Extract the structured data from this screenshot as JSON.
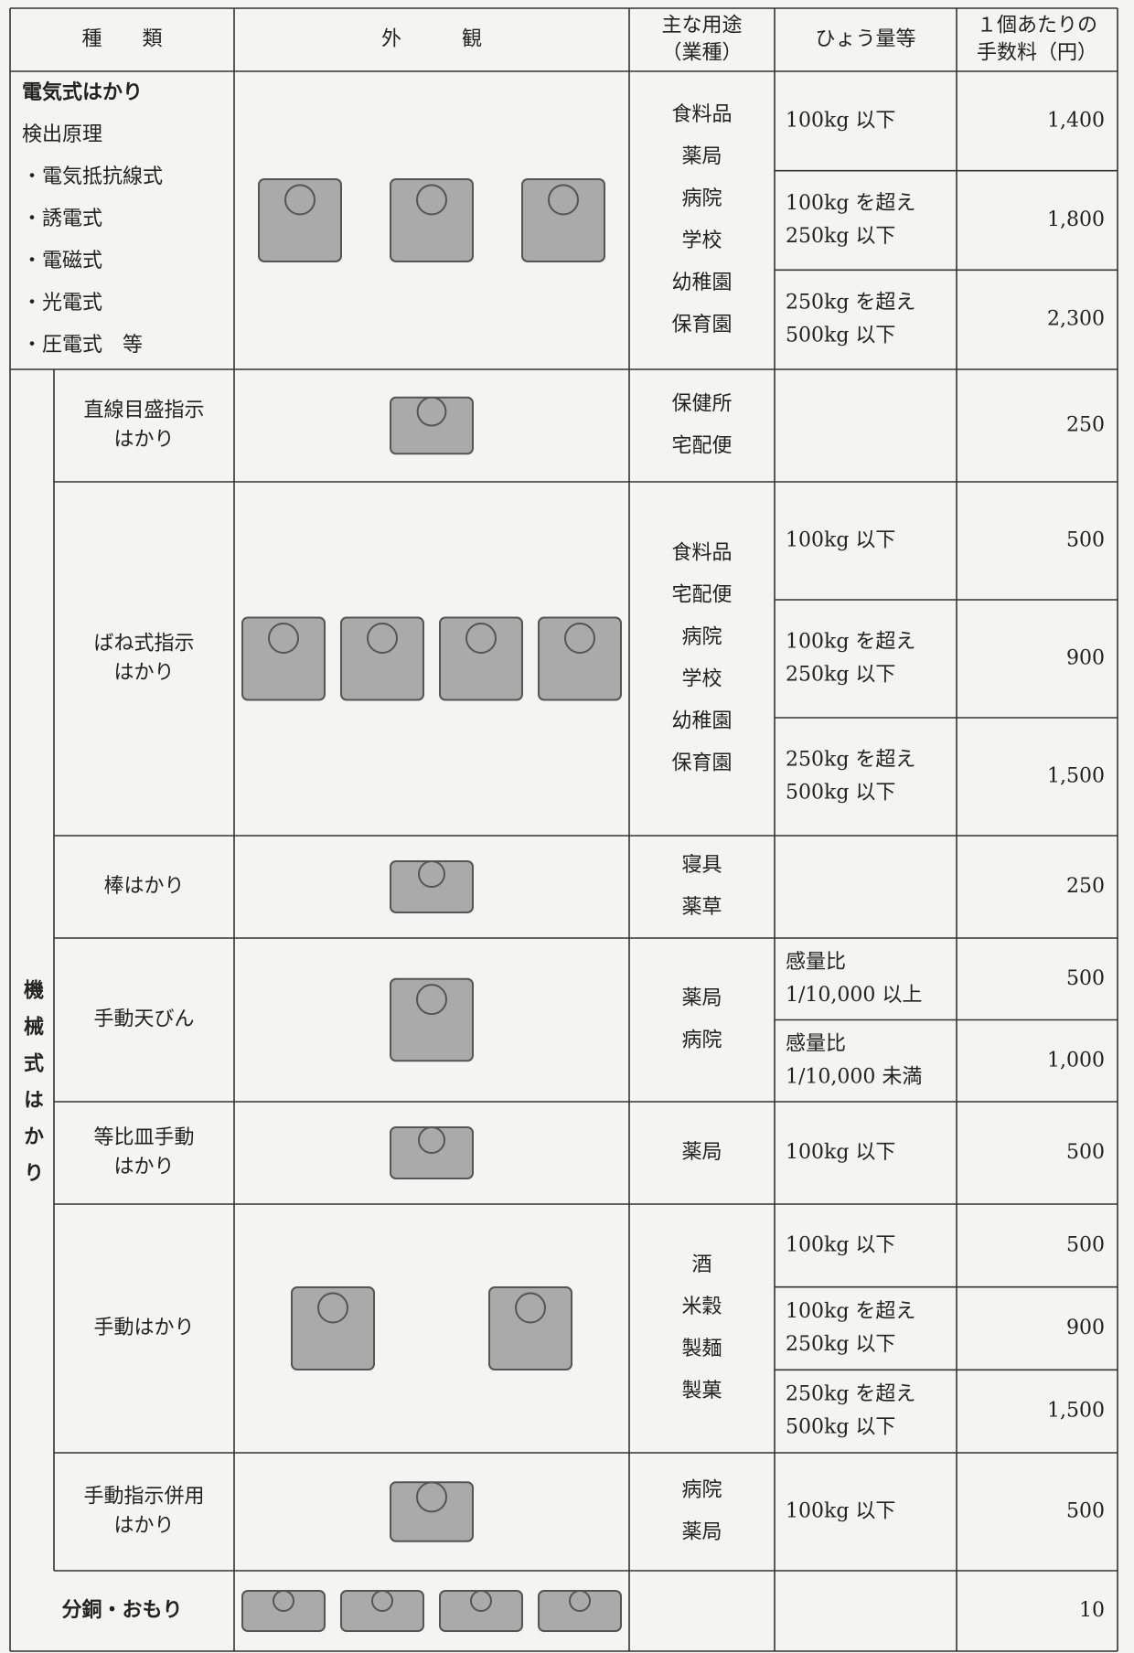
{
  "table": {
    "header": [
      [
        "種　　類"
      ],
      [
        "外　　　観"
      ],
      [
        "主な用途",
        "（業種）"
      ],
      [
        "ひょう量等"
      ],
      [
        "１個あたりの",
        "手数料（円）"
      ]
    ],
    "electric": {
      "kind": [
        "電気式はかり",
        "検出原理",
        "・電気抵抗線式",
        "・誘電式",
        "・電磁式",
        "・光電式",
        "・圧電式　等"
      ],
      "uses": [
        "食料品",
        "薬局",
        "病院",
        "学校",
        "幼稚園",
        "保育園"
      ],
      "tiers": [
        {
          "capacity": [
            "100kg 以下"
          ],
          "fee": "1,400"
        },
        {
          "capacity": [
            "100kg を超え",
            "250kg 以下"
          ],
          "fee": "1,800"
        },
        {
          "capacity": [
            "250kg を超え",
            "500kg 以下"
          ],
          "fee": "2,300"
        }
      ]
    },
    "mechanical": {
      "label": "機械式はかり",
      "rows": [
        {
          "kind": [
            "直線目盛指示",
            "はかり"
          ],
          "uses": [
            "保健所",
            "宅配便"
          ],
          "tiers": [
            {
              "fee": "250"
            }
          ]
        },
        {
          "kind": [
            "ばね式指示",
            "はかり"
          ],
          "uses": [
            "食料品",
            "宅配便",
            "病院",
            "学校",
            "幼稚園",
            "保育園"
          ],
          "tiers": [
            {
              "capacity": [
                "100kg 以下"
              ],
              "fee": "500"
            },
            {
              "capacity": [
                "100kg を超え",
                "250kg 以下"
              ],
              "fee": "900"
            },
            {
              "capacity": [
                "250kg を超え",
                "500kg 以下"
              ],
              "fee": "1,500"
            }
          ]
        },
        {
          "kind": [
            "棒はかり"
          ],
          "uses": [
            "寝具",
            "薬草"
          ],
          "tiers": [
            {
              "fee": "250"
            }
          ]
        },
        {
          "kind": [
            "手動天びん"
          ],
          "uses": [
            "薬局",
            "病院"
          ],
          "tiers": [
            {
              "capacity": [
                "感量比",
                "1/10,000 以上"
              ],
              "fee": "500"
            },
            {
              "capacity": [
                "感量比",
                "1/10,000 未満"
              ],
              "fee": "1,000"
            }
          ]
        },
        {
          "kind": [
            "等比皿手動",
            "はかり"
          ],
          "uses": [
            "薬局"
          ],
          "tiers": [
            {
              "capacity": [
                "100kg 以下"
              ],
              "fee": "500"
            }
          ]
        },
        {
          "kind": [
            "手動はかり"
          ],
          "uses": [
            "酒",
            "米穀",
            "製麺",
            "製菓"
          ],
          "tiers": [
            {
              "capacity": [
                "100kg 以下"
              ],
              "fee": "500"
            },
            {
              "capacity": [
                "100kg を超え",
                "250kg 以下"
              ],
              "fee": "900"
            },
            {
              "capacity": [
                "250kg を超え",
                "500kg 以下"
              ],
              "fee": "1,500"
            }
          ]
        },
        {
          "kind": [
            "手動指示併用",
            "はかり"
          ],
          "uses": [
            "病院",
            "薬局"
          ],
          "tiers": [
            {
              "capacity": [
                "100kg 以下"
              ],
              "fee": "500"
            }
          ]
        }
      ]
    },
    "weights": {
      "kind": "分銅・おもり",
      "fee": "10"
    }
  }
}
